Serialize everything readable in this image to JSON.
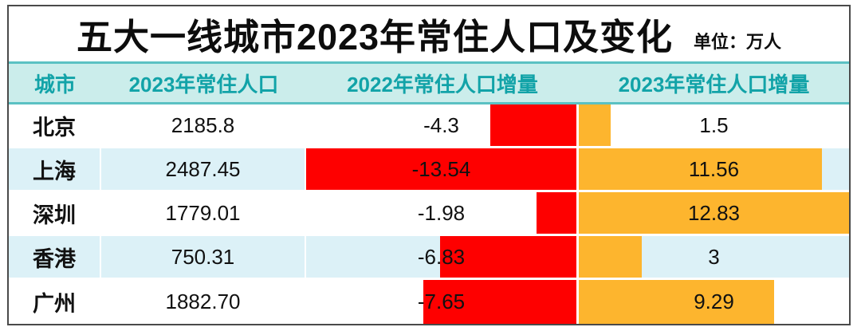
{
  "title": {
    "text": "五大一线城市2023年常住人口及变化",
    "unit": "单位：万人"
  },
  "colors": {
    "negative_bar": "#fe0000",
    "positive_bar": "#fdb52e",
    "header_bg": "#cbedeb",
    "header_line": "#5bc1c3",
    "header_text": "#12a3a8",
    "alt_row_bg": "#dcf1f7",
    "frame_border": "#4a4a4a"
  },
  "table": {
    "headers": [
      "城市",
      "2023年常住人口",
      "2022年常住人口增量",
      "2023年常住人口增量"
    ],
    "rows": [
      {
        "city": "北京",
        "population": "2185.8",
        "inc2022": -4.3,
        "inc2022_label": "-4.3",
        "inc2023": 1.5,
        "inc2023_label": "1.5"
      },
      {
        "city": "上海",
        "population": "2487.45",
        "inc2022": -13.54,
        "inc2022_label": "-13.54",
        "inc2023": 11.56,
        "inc2023_label": "11.56"
      },
      {
        "city": "深圳",
        "population": "1779.01",
        "inc2022": -1.98,
        "inc2022_label": "-1.98",
        "inc2023": 12.83,
        "inc2023_label": "12.83"
      },
      {
        "city": "香港",
        "population": "750.31",
        "inc2022": -6.83,
        "inc2022_label": "-6.83",
        "inc2023": 3,
        "inc2023_label": "3"
      },
      {
        "city": "广州",
        "population": "1882.70",
        "inc2022": -7.65,
        "inc2022_label": "-7.65",
        "inc2023": 9.29,
        "inc2023_label": "9.29"
      }
    ]
  },
  "chart_data": {
    "type": "bar",
    "orientation": "horizontal",
    "title": "五大一线城市2023年常住人口及变化",
    "unit": "万人",
    "categories": [
      "北京",
      "上海",
      "深圳",
      "香港",
      "广州"
    ],
    "series": [
      {
        "name": "2023年常住人口",
        "values": [
          2185.8,
          2487.45,
          1779.01,
          750.31,
          1882.7
        ]
      },
      {
        "name": "2022年常住人口增量",
        "values": [
          -4.3,
          -13.54,
          -1.98,
          -6.83,
          -7.65
        ],
        "color": "#fe0000"
      },
      {
        "name": "2023年常住人口增量",
        "values": [
          1.5,
          11.56,
          12.83,
          3,
          9.29
        ],
        "color": "#fdb52e"
      }
    ],
    "layout_hints": {
      "negative_bars_grow_left_from_center_axis": true,
      "positive_bars_grow_right_from_center_axis": true,
      "bars_scaled_to_column_max": true,
      "legend": "none",
      "grid": "off"
    }
  }
}
